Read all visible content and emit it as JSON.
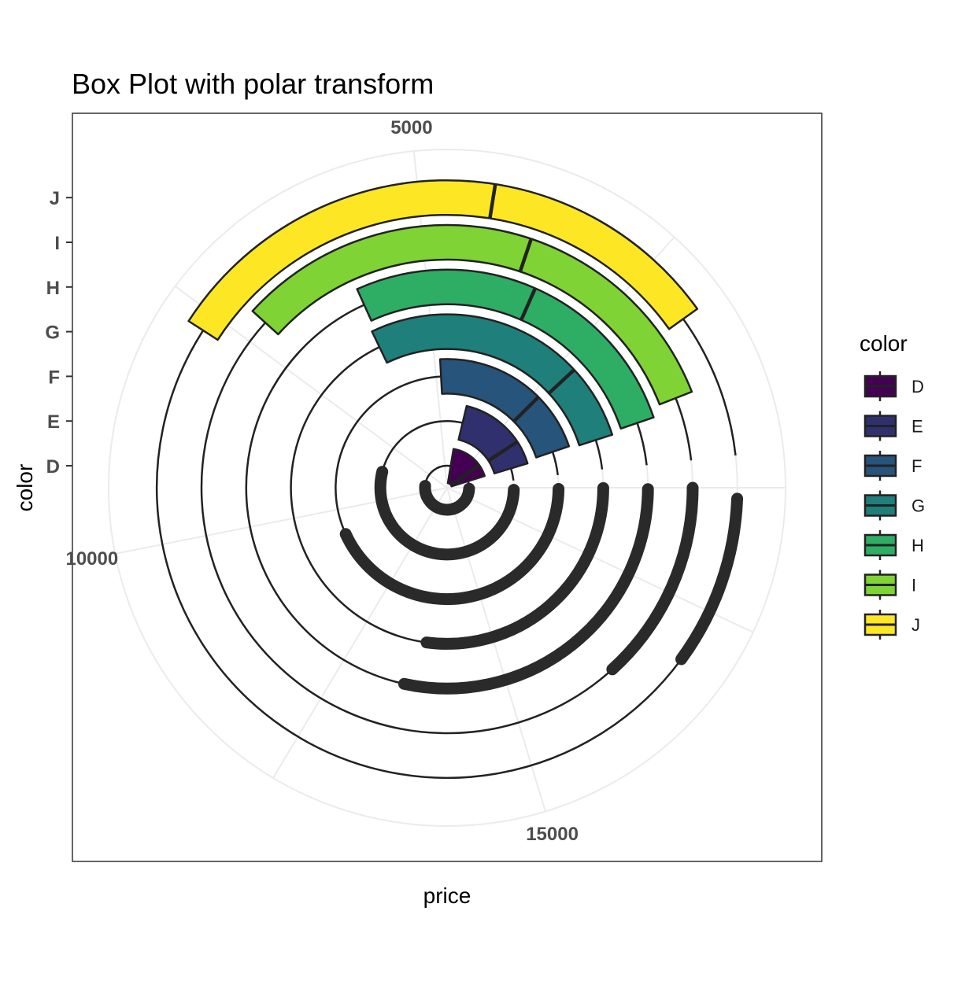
{
  "chart_data": {
    "type": "boxplot",
    "coord": "polar",
    "title": "Box Plot with polar transform",
    "xlabel": "price",
    "ylabel": "color",
    "categories": [
      "D",
      "E",
      "F",
      "G",
      "H",
      "I",
      "J"
    ],
    "x_ticks": [
      5000,
      10000,
      15000
    ],
    "x_tick_labels": [
      "5000",
      "10000",
      "15000"
    ],
    "xlim": [
      0,
      18823
    ],
    "grid": true,
    "legend": {
      "title": "color",
      "position": "right",
      "entries": [
        "D",
        "E",
        "F",
        "G",
        "H",
        "I",
        "J"
      ]
    },
    "series": [
      {
        "name": "D",
        "color": "#440154",
        "q1": 911,
        "median": 1838,
        "q3": 4214,
        "whisker_low": 357,
        "whisker_high": 9156,
        "outlier_max": 18693
      },
      {
        "name": "E",
        "color": "#30306E",
        "q1": 882,
        "median": 1739,
        "q3": 4003,
        "whisker_low": 326,
        "whisker_high": 8684,
        "outlier_max": 18731
      },
      {
        "name": "F",
        "color": "#26547B",
        "q1": 982,
        "median": 2344,
        "q3": 4868,
        "whisker_low": 342,
        "whisker_high": 10695,
        "outlier_max": 18791
      },
      {
        "name": "G",
        "color": "#1F7F7A",
        "q1": 931,
        "median": 2242,
        "q3": 6048,
        "whisker_low": 354,
        "whisker_high": 13722,
        "outlier_max": 18818
      },
      {
        "name": "H",
        "color": "#2EAD65",
        "q1": 984,
        "median": 3460,
        "q3": 5980,
        "whisker_low": 337,
        "whisker_high": 13472,
        "outlier_max": 18803
      },
      {
        "name": "I",
        "color": "#7FD335",
        "q1": 1120,
        "median": 3730,
        "q3": 7202,
        "whisker_low": 334,
        "whisker_high": 16328,
        "outlier_max": 18823
      },
      {
        "name": "J",
        "color": "#FDE725",
        "q1": 1860,
        "median": 4234,
        "q3": 7695,
        "whisker_low": 335,
        "whisker_high": 16929,
        "outlier_max": 18710
      }
    ]
  }
}
